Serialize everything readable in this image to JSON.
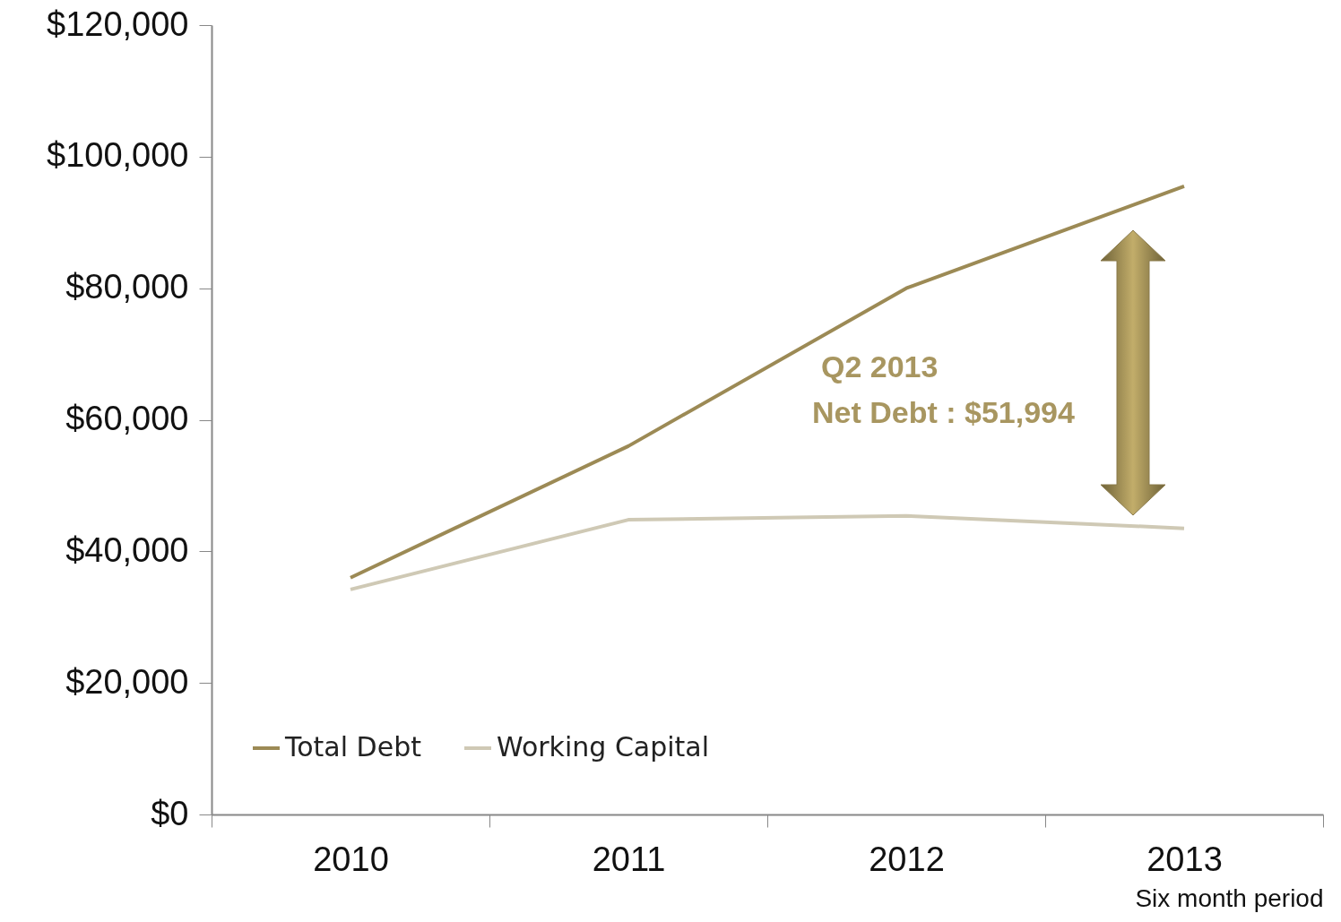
{
  "chart_data": {
    "type": "line",
    "xlabel": "Six month period",
    "categories": [
      "2010",
      "2011",
      "2012",
      "2013"
    ],
    "series": [
      {
        "name": "Total Debt",
        "color": "#9c8a55",
        "values": [
          36000,
          56000,
          80000,
          95500
        ]
      },
      {
        "name": "Working Capital",
        "color": "#cfc9b5",
        "values": [
          34200,
          44800,
          45400,
          43500
        ]
      }
    ],
    "ylim": [
      0,
      120000
    ],
    "yticks": [
      {
        "value": 0,
        "label": "$0"
      },
      {
        "value": 20000,
        "label": "$20,000"
      },
      {
        "value": 40000,
        "label": "$40,000"
      },
      {
        "value": 60000,
        "label": "$60,000"
      },
      {
        "value": 80000,
        "label": "$80,000"
      },
      {
        "value": 100000,
        "label": "$100,000"
      },
      {
        "value": 120000,
        "label": "$120,000"
      }
    ],
    "annotations": [
      "Q2 2013",
      "Net Debt : $51,994"
    ],
    "legend": "bottom left",
    "grid": false
  }
}
